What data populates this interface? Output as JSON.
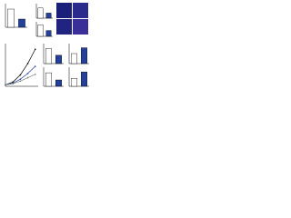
{
  "chart_data": [
    {
      "type": "bar",
      "categories": [
        null,
        null
      ],
      "values": [
        1.0,
        0.45
      ],
      "colors": [
        "#ffffff",
        "#23409a"
      ],
      "ylim": [
        0,
        1.3
      ]
    },
    {
      "type": "bar",
      "categories": [
        null,
        null
      ],
      "values": [
        0.7,
        0.35
      ],
      "colors": [
        "#ffffff",
        "#23409a"
      ],
      "ylim": [
        0,
        1
      ]
    },
    {
      "type": "bar",
      "categories": [
        null,
        null
      ],
      "values": [
        0.8,
        0.4
      ],
      "colors": [
        "#ffffff",
        "#23409a"
      ],
      "ylim": [
        0,
        1
      ]
    },
    {
      "type": "line",
      "x": [
        0,
        5,
        10,
        15,
        20
      ],
      "xlim": [
        0,
        22
      ],
      "ylim": [
        0,
        1500
      ],
      "series": [
        {
          "color": "#000000",
          "values": [
            50,
            150,
            400,
            800,
            1300
          ]
        },
        {
          "color": "#23409a",
          "values": [
            50,
            110,
            250,
            450,
            700
          ]
        },
        {
          "color": "#7f7f7f",
          "values": [
            50,
            90,
            180,
            300,
            420
          ]
        }
      ]
    },
    {
      "type": "bar",
      "categories": [
        null,
        null
      ],
      "values": [
        0.9,
        0.5
      ],
      "colors": [
        "#ffffff",
        "#23409a"
      ],
      "ylim": [
        0,
        1.2
      ]
    },
    {
      "type": "bar",
      "categories": [
        null,
        null
      ],
      "values": [
        0.85,
        0.4
      ],
      "colors": [
        "#ffffff",
        "#23409a"
      ],
      "ylim": [
        0,
        1.2
      ]
    },
    {
      "type": "bar",
      "categories": [
        null,
        null
      ],
      "values": [
        0.6,
        0.95
      ],
      "colors": [
        "#ffffff",
        "#23409a"
      ],
      "ylim": [
        0,
        1.2
      ]
    },
    {
      "type": "bar",
      "categories": [
        null,
        null
      ],
      "values": [
        0.5,
        0.9
      ],
      "colors": [
        "#ffffff",
        "#23409a"
      ],
      "ylim": [
        0,
        1.2
      ]
    }
  ]
}
